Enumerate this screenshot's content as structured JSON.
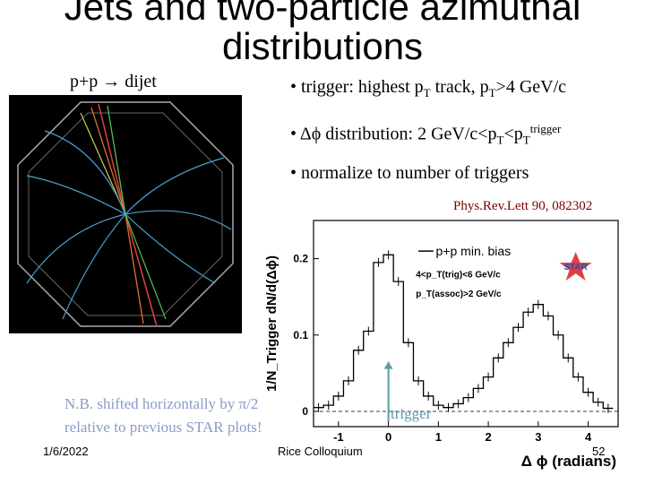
{
  "slide": {
    "title": "Jets and two-particle azimuthal distributions",
    "subtitle": "p+p → dijet",
    "bullets": [
      {
        "pre": "• trigger: highest p",
        "sub1": "T",
        "mid": " track, p",
        "sub2": "T",
        "post": ">4 GeV/c"
      },
      {
        "pre": "• Δϕ distribution: 2 GeV/c<p",
        "sub1": "T",
        "mid": "<p",
        "sub2": "T",
        "sup": "trigger"
      },
      {
        "text": "• normalize to number of triggers"
      }
    ],
    "reference": "Phys.Rev.Lett 90, 082302",
    "note_line1": "N.B. shifted horizontally by π/2",
    "note_line2": "relative to previous STAR plots!",
    "trigger_label": "trigger",
    "footer_date": "1/6/2022",
    "footer_venue": "Rice Colloquium",
    "page_number": "52"
  },
  "colors": {
    "accent_ref": "#7a0000",
    "note": "#8a9bc8",
    "trigger_arrow": "#5b9aa8",
    "star_blue": "#2a4fb0",
    "star_red": "#d62020"
  },
  "chart_data": {
    "type": "line",
    "title": "",
    "ylabel": "1/N_Trigger dN/d(Δϕ)",
    "xlabel": "Δ ϕ (radians)",
    "xlim": [
      -1.5,
      4.6
    ],
    "ylim": [
      -0.02,
      0.25
    ],
    "xticks": [
      "-1",
      "0",
      "1",
      "2",
      "3",
      "4"
    ],
    "yticks": [
      "0",
      "0.1",
      "0.2"
    ],
    "legend": {
      "entry": "p+p min. bias",
      "line1": "4<p_T(trig)<6 GeV/c",
      "line2": "p_T(assoc)>2 GeV/c",
      "logo": "STAR"
    },
    "series": [
      {
        "name": "p+p min. bias",
        "x": [
          -1.4,
          -1.2,
          -1.0,
          -0.8,
          -0.6,
          -0.4,
          -0.2,
          0.0,
          0.2,
          0.4,
          0.6,
          0.8,
          1.0,
          1.2,
          1.4,
          1.6,
          1.8,
          2.0,
          2.2,
          2.4,
          2.6,
          2.8,
          3.0,
          3.2,
          3.4,
          3.6,
          3.8,
          4.0,
          4.2,
          4.4
        ],
        "values": [
          0.005,
          0.008,
          0.02,
          0.04,
          0.08,
          0.105,
          0.195,
          0.205,
          0.17,
          0.09,
          0.04,
          0.02,
          0.008,
          0.005,
          0.01,
          0.018,
          0.03,
          0.045,
          0.07,
          0.09,
          0.11,
          0.13,
          0.14,
          0.125,
          0.1,
          0.07,
          0.045,
          0.025,
          0.012,
          0.004
        ]
      }
    ]
  }
}
